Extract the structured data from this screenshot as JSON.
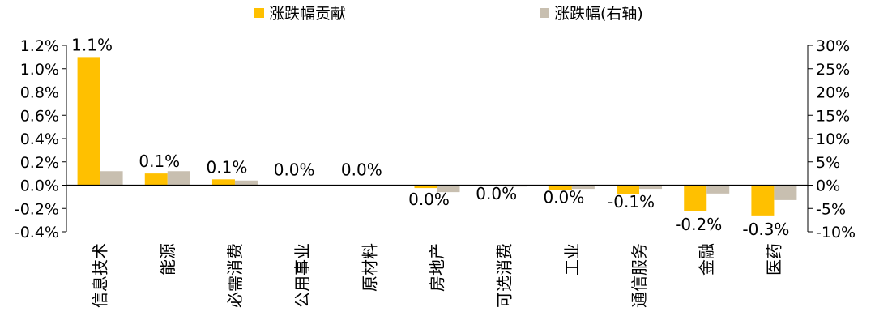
{
  "chart_data": {
    "type": "bar",
    "categories": [
      "信息技术",
      "能源",
      "必需消费",
      "公用事业",
      "原材料",
      "房地产",
      "可选消费",
      "工业",
      "通信服务",
      "金融",
      "医药"
    ],
    "series": [
      {
        "name": "涨跌幅贡献",
        "axis": "left",
        "color": "#FFC000",
        "values": [
          1.1,
          0.1,
          0.05,
          0.0,
          0.0,
          -0.025,
          -0.01,
          -0.04,
          -0.08,
          -0.22,
          -0.26
        ]
      },
      {
        "name": "涨跌幅(右轴)",
        "axis": "right",
        "color": "#C8BFB0",
        "values": [
          3.0,
          3.0,
          1.0,
          0.0,
          0.0,
          -1.5,
          -0.3,
          -0.8,
          -0.8,
          -1.8,
          -3.2
        ]
      }
    ],
    "data_labels": [
      "1.1%",
      "0.1%",
      "0.1%",
      "0.0%",
      "0.0%",
      "0.0%",
      "0.0%",
      "0.0%",
      "-0.1%",
      "-0.2%",
      "-0.3%"
    ],
    "left_axis": {
      "ticks": [
        1.2,
        1.0,
        0.8,
        0.6,
        0.4,
        0.2,
        0.0,
        -0.2,
        -0.4
      ],
      "tick_labels": [
        "1.2%",
        "1.0%",
        "0.8%",
        "0.6%",
        "0.4%",
        "0.2%",
        "0.0%",
        "-0.2%",
        "-0.4%"
      ],
      "ylim": [
        -0.4,
        1.2
      ]
    },
    "right_axis": {
      "ticks": [
        30,
        25,
        20,
        15,
        10,
        5,
        0,
        -5,
        -10
      ],
      "tick_labels": [
        "30%",
        "25%",
        "20%",
        "15%",
        "10%",
        "5%",
        "0%",
        "-5%",
        "-10%"
      ],
      "ylim": [
        -10,
        30
      ]
    },
    "legend_position": "top-center",
    "grid": false
  }
}
